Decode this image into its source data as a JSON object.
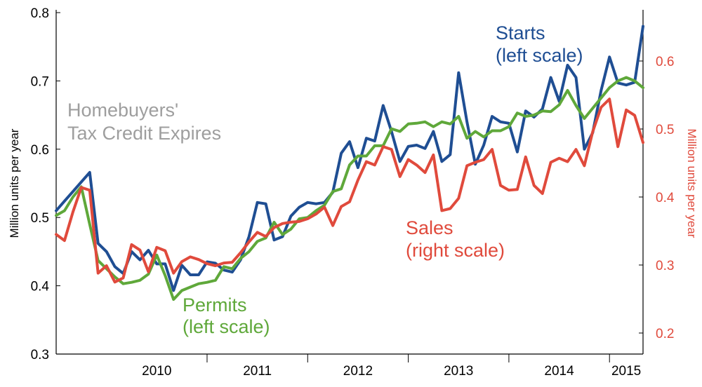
{
  "chart_data": {
    "type": "line",
    "title": "",
    "ylabel_left": "Million units per year",
    "ylabel_right": "Million units per year",
    "ylim_left": [
      0.3,
      0.8
    ],
    "ylim_right": [
      0.2,
      0.6
    ],
    "left_ticks": [
      "0.3",
      "0.4",
      "0.5",
      "0.6",
      "0.7",
      "0.8"
    ],
    "right_ticks": [
      "0.2",
      "0.3",
      "0.4",
      "0.5",
      "0.6"
    ],
    "x_range": [
      "2009-07",
      "2015-05"
    ],
    "x_tick_labels": [
      "2010",
      "2011",
      "2012",
      "2013",
      "2014",
      "2015"
    ],
    "grid": false,
    "annotations": {
      "tax_credit": [
        "Homebuyers'",
        "Tax Credit Expires"
      ],
      "starts": [
        "Starts",
        "(left scale)"
      ],
      "permits": [
        "Permits",
        "(left scale)"
      ],
      "sales": [
        "Sales",
        "(right scale)"
      ]
    },
    "series": [
      {
        "name": "Starts",
        "axis": "left",
        "color": "#1f4e93",
        "x": [
          "2009-07",
          "2009-08",
          "2009-09",
          "2009-10",
          "2009-11",
          "2009-12",
          "2010-01",
          "2010-02",
          "2010-03",
          "2010-04",
          "2010-05",
          "2010-06",
          "2010-07",
          "2010-08",
          "2010-09",
          "2010-10",
          "2010-11",
          "2010-12",
          "2011-01",
          "2011-02",
          "2011-03",
          "2011-04",
          "2011-05",
          "2011-06",
          "2011-07",
          "2011-08",
          "2011-09",
          "2011-10",
          "2011-11",
          "2011-12",
          "2012-01",
          "2012-02",
          "2012-03",
          "2012-04",
          "2012-05",
          "2012-06",
          "2012-07",
          "2012-08",
          "2012-09",
          "2012-10",
          "2012-11",
          "2012-12",
          "2013-01",
          "2013-02",
          "2013-03",
          "2013-04",
          "2013-05",
          "2013-06",
          "2013-07",
          "2013-08",
          "2013-09",
          "2013-10",
          "2013-11",
          "2013-12",
          "2014-01",
          "2014-02",
          "2014-03",
          "2014-04",
          "2014-05",
          "2014-06",
          "2014-07",
          "2014-08",
          "2014-09",
          "2014-10",
          "2014-11",
          "2014-12",
          "2015-01",
          "2015-02",
          "2015-03",
          "2015-04",
          "2015-05"
        ],
        "values": [
          0.51,
          0.524,
          0.538,
          0.552,
          0.566,
          0.462,
          0.45,
          0.428,
          0.418,
          0.45,
          0.438,
          0.452,
          0.432,
          0.432,
          0.393,
          0.43,
          0.416,
          0.416,
          0.435,
          0.433,
          0.423,
          0.42,
          0.438,
          0.472,
          0.522,
          0.52,
          0.467,
          0.472,
          0.502,
          0.515,
          0.522,
          0.52,
          0.522,
          0.537,
          0.594,
          0.611,
          0.573,
          0.616,
          0.612,
          0.664,
          0.626,
          0.582,
          0.604,
          0.606,
          0.601,
          0.626,
          0.582,
          0.592,
          0.712,
          0.64,
          0.578,
          0.606,
          0.648,
          0.64,
          0.638,
          0.596,
          0.656,
          0.647,
          0.659,
          0.705,
          0.67,
          0.723,
          0.705,
          0.6,
          0.624,
          0.686,
          0.735,
          0.697,
          0.694,
          0.698,
          0.78
        ]
      },
      {
        "name": "Permits",
        "axis": "left",
        "color": "#5fa83a",
        "x": [
          "2009-07",
          "2009-08",
          "2009-09",
          "2009-10",
          "2009-11",
          "2009-12",
          "2010-01",
          "2010-02",
          "2010-03",
          "2010-04",
          "2010-05",
          "2010-06",
          "2010-07",
          "2010-08",
          "2010-09",
          "2010-10",
          "2010-11",
          "2010-12",
          "2011-01",
          "2011-02",
          "2011-03",
          "2011-04",
          "2011-05",
          "2011-06",
          "2011-07",
          "2011-08",
          "2011-09",
          "2011-10",
          "2011-11",
          "2011-12",
          "2012-01",
          "2012-02",
          "2012-03",
          "2012-04",
          "2012-05",
          "2012-06",
          "2012-07",
          "2012-08",
          "2012-09",
          "2012-10",
          "2012-11",
          "2012-12",
          "2013-01",
          "2013-02",
          "2013-03",
          "2013-04",
          "2013-05",
          "2013-06",
          "2013-07",
          "2013-08",
          "2013-09",
          "2013-10",
          "2013-11",
          "2013-12",
          "2014-01",
          "2014-02",
          "2014-03",
          "2014-04",
          "2014-05",
          "2014-06",
          "2014-07",
          "2014-08",
          "2014-09",
          "2014-10",
          "2014-11",
          "2014-12",
          "2015-01",
          "2015-02",
          "2015-03",
          "2015-04",
          "2015-05"
        ],
        "values": [
          0.503,
          0.51,
          0.53,
          0.545,
          0.49,
          0.437,
          0.425,
          0.413,
          0.403,
          0.405,
          0.408,
          0.417,
          0.445,
          0.415,
          0.38,
          0.393,
          0.398,
          0.403,
          0.405,
          0.408,
          0.428,
          0.425,
          0.44,
          0.45,
          0.465,
          0.47,
          0.493,
          0.475,
          0.483,
          0.498,
          0.5,
          0.51,
          0.518,
          0.538,
          0.542,
          0.577,
          0.59,
          0.59,
          0.605,
          0.605,
          0.63,
          0.626,
          0.637,
          0.638,
          0.64,
          0.633,
          0.64,
          0.637,
          0.648,
          0.616,
          0.626,
          0.618,
          0.627,
          0.627,
          0.633,
          0.653,
          0.648,
          0.65,
          0.656,
          0.655,
          0.665,
          0.686,
          0.664,
          0.645,
          0.66,
          0.675,
          0.69,
          0.7,
          0.705,
          0.7,
          0.69
        ]
      },
      {
        "name": "Sales",
        "axis": "right",
        "color": "#e04a3c",
        "x": [
          "2009-07",
          "2009-08",
          "2009-09",
          "2009-10",
          "2009-11",
          "2009-12",
          "2010-01",
          "2010-02",
          "2010-03",
          "2010-04",
          "2010-05",
          "2010-06",
          "2010-07",
          "2010-08",
          "2010-09",
          "2010-10",
          "2010-11",
          "2010-12",
          "2011-01",
          "2011-02",
          "2011-03",
          "2011-04",
          "2011-05",
          "2011-06",
          "2011-07",
          "2011-08",
          "2011-09",
          "2011-10",
          "2011-11",
          "2011-12",
          "2012-01",
          "2012-02",
          "2012-03",
          "2012-04",
          "2012-05",
          "2012-06",
          "2012-07",
          "2012-08",
          "2012-09",
          "2012-10",
          "2012-11",
          "2012-12",
          "2013-01",
          "2013-02",
          "2013-03",
          "2013-04",
          "2013-05",
          "2013-06",
          "2013-07",
          "2013-08",
          "2013-09",
          "2013-10",
          "2013-11",
          "2013-12",
          "2014-01",
          "2014-02",
          "2014-03",
          "2014-04",
          "2014-05",
          "2014-06",
          "2014-07",
          "2014-08",
          "2014-09",
          "2014-10",
          "2014-11",
          "2014-12",
          "2015-01",
          "2015-02",
          "2015-03",
          "2015-04",
          "2015-05"
        ],
        "values": [
          0.345,
          0.336,
          0.378,
          0.414,
          0.41,
          0.288,
          0.299,
          0.275,
          0.281,
          0.33,
          0.322,
          0.29,
          0.326,
          0.321,
          0.288,
          0.305,
          0.312,
          0.308,
          0.302,
          0.299,
          0.303,
          0.304,
          0.318,
          0.334,
          0.348,
          0.342,
          0.355,
          0.361,
          0.363,
          0.364,
          0.368,
          0.375,
          0.385,
          0.358,
          0.386,
          0.393,
          0.425,
          0.452,
          0.447,
          0.474,
          0.47,
          0.43,
          0.455,
          0.447,
          0.436,
          0.462,
          0.38,
          0.383,
          0.398,
          0.446,
          0.451,
          0.455,
          0.47,
          0.417,
          0.41,
          0.411,
          0.459,
          0.417,
          0.405,
          0.451,
          0.457,
          0.452,
          0.47,
          0.446,
          0.496,
          0.532,
          0.544,
          0.474,
          0.528,
          0.52,
          0.48
        ]
      }
    ]
  }
}
